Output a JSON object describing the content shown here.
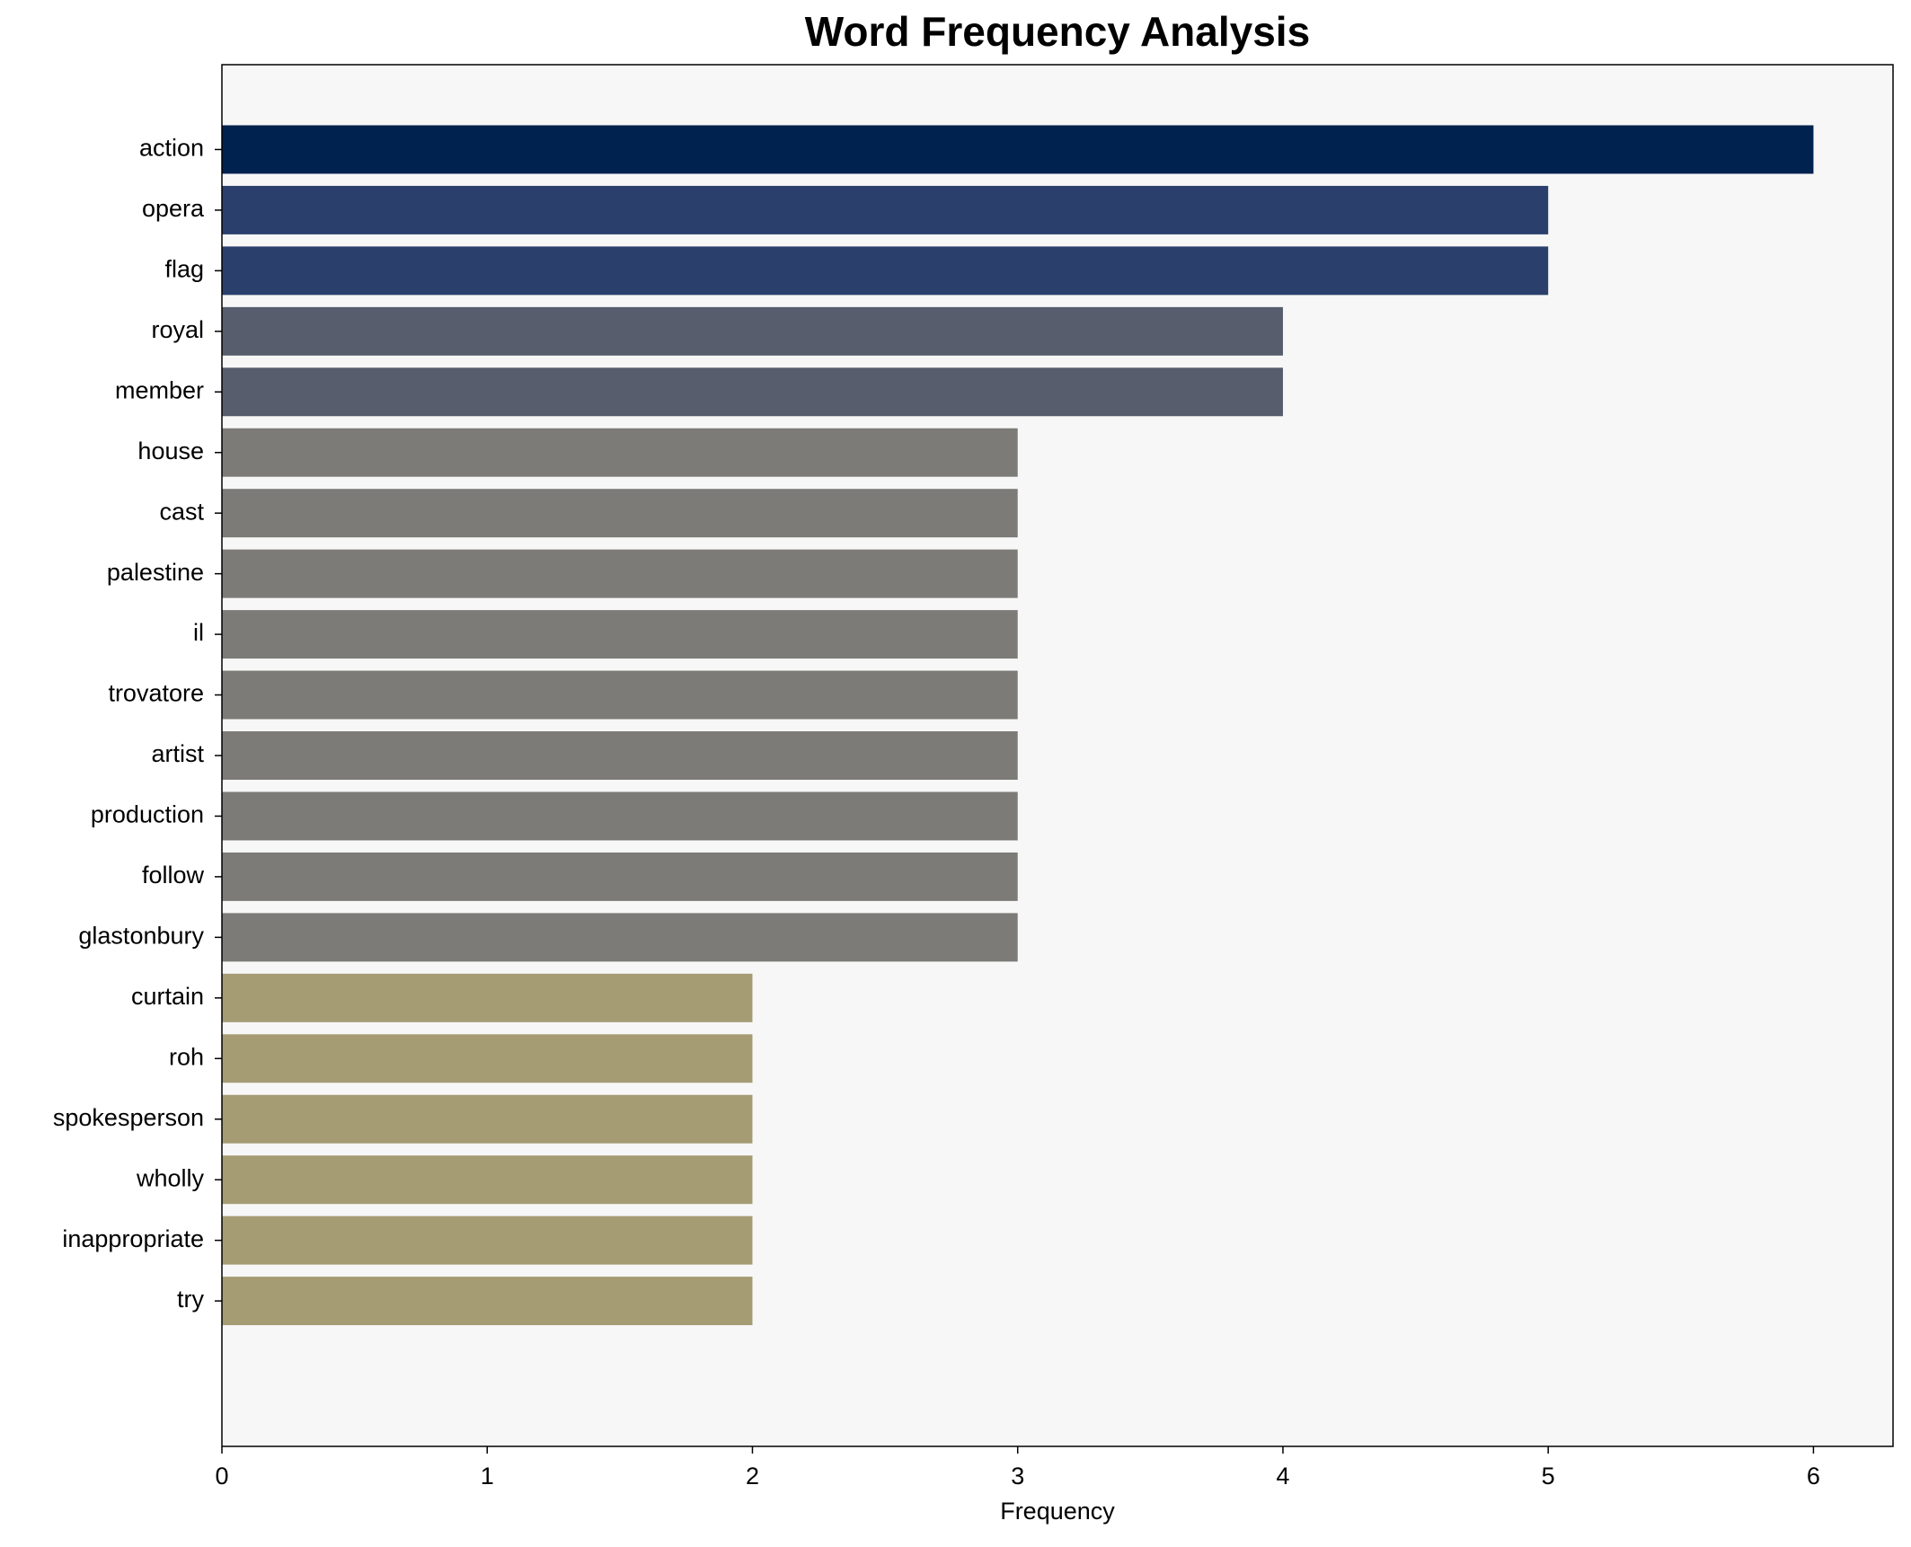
{
  "chart_data": {
    "type": "bar",
    "orientation": "horizontal",
    "title": "Word Frequency Analysis",
    "x_label": "Frequency",
    "categories": [
      "action",
      "opera",
      "flag",
      "royal",
      "member",
      "house",
      "cast",
      "palestine",
      "il",
      "trovatore",
      "artist",
      "production",
      "follow",
      "glastonbury",
      "curtain",
      "roh",
      "spokesperson",
      "wholly",
      "inappropriate",
      "try"
    ],
    "values": [
      6,
      5,
      5,
      4,
      4,
      3,
      3,
      3,
      3,
      3,
      3,
      3,
      3,
      3,
      2,
      2,
      2,
      2,
      2,
      2
    ],
    "colors": [
      "#00224e",
      "#2a3f6c",
      "#2a3f6c",
      "#575d6d",
      "#575d6d",
      "#7c7b78",
      "#7c7b78",
      "#7c7b78",
      "#7c7b78",
      "#7c7b78",
      "#7c7b78",
      "#7c7b78",
      "#7c7b78",
      "#7c7b78",
      "#a59c74",
      "#a59c74",
      "#a59c74",
      "#a59c74",
      "#a59c74",
      "#a59c74"
    ],
    "xlim": [
      0,
      6.3
    ],
    "xticks": [
      0,
      1,
      2,
      3,
      4,
      5,
      6
    ],
    "grid": false,
    "background": "#f7f7f7"
  }
}
